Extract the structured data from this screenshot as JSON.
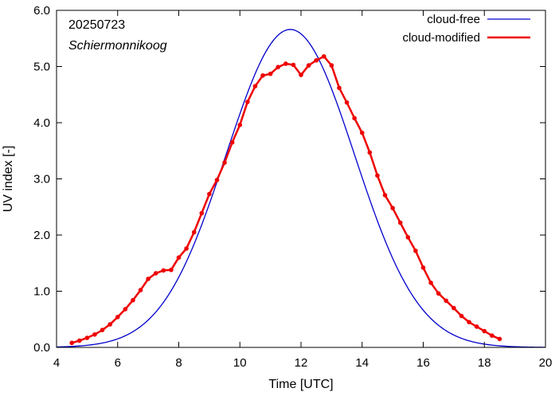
{
  "chart_data": {
    "type": "line",
    "xlabel": "Time  [UTC]",
    "ylabel": "UV index  [-]",
    "xlim": [
      4,
      20
    ],
    "ylim": [
      0,
      6
    ],
    "xticks": [
      4,
      6,
      8,
      10,
      12,
      14,
      16,
      18,
      20
    ],
    "yticks": [
      0.0,
      1.0,
      2.0,
      3.0,
      4.0,
      5.0,
      6.0
    ],
    "xtick_labels": [
      "4",
      "6",
      "8",
      "10",
      "12",
      "14",
      "16",
      "18",
      "20"
    ],
    "ytick_labels": [
      "0.0",
      "1.0",
      "2.0",
      "3.0",
      "4.0",
      "5.0",
      "6.0"
    ],
    "annotations": {
      "date": "20250723",
      "location": "Schiermonnikoog"
    },
    "legend_position": "top-right",
    "grid": false,
    "series": [
      {
        "name": "cloud-free",
        "color": "#0000cc",
        "markers": false,
        "model": {
          "peak_time": 11.65,
          "peak_value": 5.66,
          "sigma": 2.1,
          "start": 4.0,
          "end": 20.0
        }
      },
      {
        "name": "cloud-modified",
        "color": "#ee0000",
        "markers": true,
        "x": [
          4.5,
          4.75,
          5.0,
          5.25,
          5.5,
          5.75,
          6.0,
          6.25,
          6.5,
          6.75,
          7.0,
          7.25,
          7.5,
          7.75,
          8.0,
          8.25,
          8.5,
          8.75,
          9.0,
          9.25,
          9.5,
          9.75,
          10.0,
          10.25,
          10.5,
          10.75,
          11.0,
          11.25,
          11.5,
          11.75,
          12.0,
          12.25,
          12.5,
          12.75,
          13.0,
          13.25,
          13.5,
          13.75,
          14.0,
          14.25,
          14.5,
          14.75,
          15.0,
          15.25,
          15.5,
          15.75,
          16.0,
          16.25,
          16.5,
          16.75,
          17.0,
          17.25,
          17.5,
          17.75,
          18.0,
          18.25,
          18.5
        ],
        "y": [
          0.08,
          0.12,
          0.17,
          0.23,
          0.31,
          0.41,
          0.54,
          0.68,
          0.84,
          1.02,
          1.22,
          1.32,
          1.37,
          1.38,
          1.6,
          1.76,
          2.05,
          2.39,
          2.73,
          2.98,
          3.29,
          3.65,
          3.96,
          4.37,
          4.65,
          4.84,
          4.87,
          4.99,
          5.05,
          5.03,
          4.85,
          5.02,
          5.11,
          5.18,
          5.02,
          4.62,
          4.36,
          4.08,
          3.82,
          3.47,
          3.06,
          2.71,
          2.48,
          2.22,
          1.96,
          1.72,
          1.42,
          1.15,
          0.96,
          0.83,
          0.7,
          0.56,
          0.45,
          0.37,
          0.29,
          0.21,
          0.15
        ]
      }
    ]
  }
}
